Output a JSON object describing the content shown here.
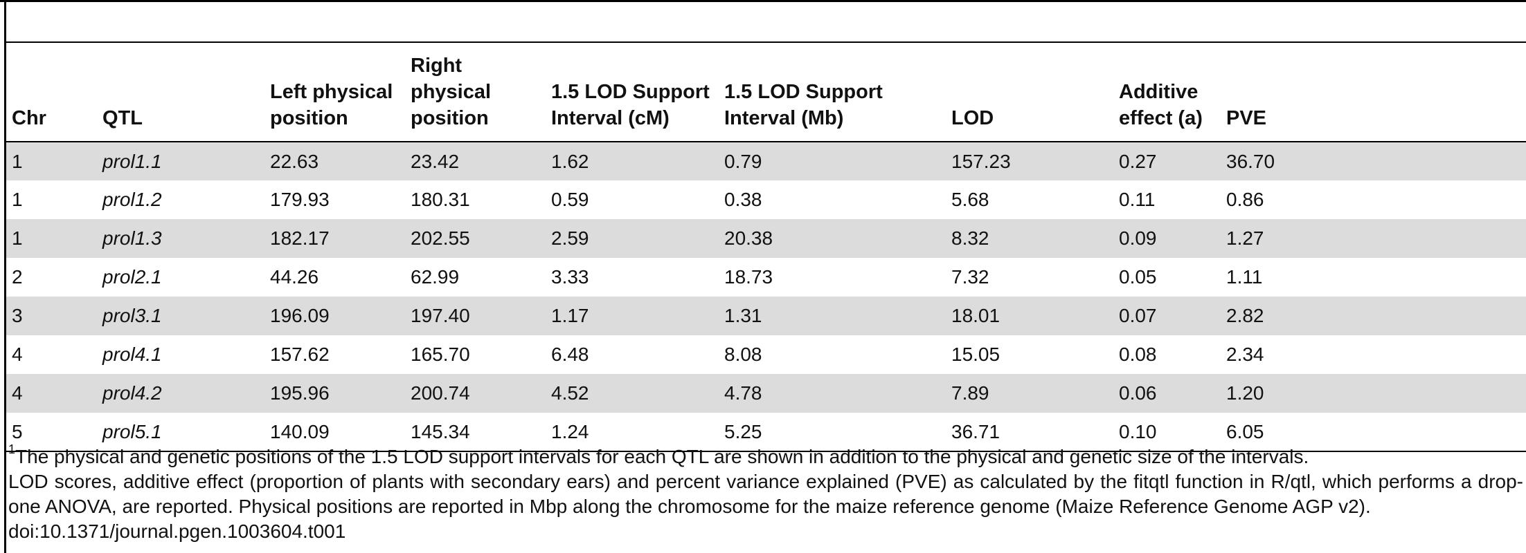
{
  "table": {
    "headers": [
      "Chr",
      "QTL",
      "Left physical position",
      "Right physical position",
      "1.5 LOD Support Interval (cM)",
      "1.5 LOD Support Interval (Mb)",
      "LOD",
      "Additive effect (a)",
      "PVE"
    ],
    "rows": [
      [
        "1",
        "prol1.1",
        "22.63",
        "23.42",
        "1.62",
        "0.79",
        "157.23",
        "0.27",
        "36.70"
      ],
      [
        "1",
        "prol1.2",
        "179.93",
        "180.31",
        "0.59",
        "0.38",
        "5.68",
        "0.11",
        "0.86"
      ],
      [
        "1",
        "prol1.3",
        "182.17",
        "202.55",
        "2.59",
        "20.38",
        "8.32",
        "0.09",
        "1.27"
      ],
      [
        "2",
        "prol2.1",
        "44.26",
        "62.99",
        "3.33",
        "18.73",
        "7.32",
        "0.05",
        "1.11"
      ],
      [
        "3",
        "prol3.1",
        "196.09",
        "197.40",
        "1.17",
        "1.31",
        "18.01",
        "0.07",
        "2.82"
      ],
      [
        "4",
        "prol4.1",
        "157.62",
        "165.70",
        "6.48",
        "8.08",
        "15.05",
        "0.08",
        "2.34"
      ],
      [
        "4",
        "prol4.2",
        "195.96",
        "200.74",
        "4.52",
        "4.78",
        "7.89",
        "0.06",
        "1.20"
      ],
      [
        "5",
        "prol5.1",
        "140.09",
        "145.34",
        "1.24",
        "5.25",
        "36.71",
        "0.10",
        "6.05"
      ]
    ]
  },
  "footnotes": {
    "marker": "1",
    "line1": "The physical and genetic positions of the 1.5 LOD support intervals for each QTL are shown in addition to the physical and genetic size of the intervals.",
    "line2": "LOD scores, additive effect (proportion of plants with secondary ears) and percent variance explained (PVE) as calculated by the fitqtl function in R/qtl, which performs a drop-one ANOVA, are reported. Physical positions are reported in Mbp along the chromosome for the maize reference genome (Maize Reference Genome AGP v2).",
    "doi": "doi:10.1371/journal.pgen.1003604.t001"
  }
}
